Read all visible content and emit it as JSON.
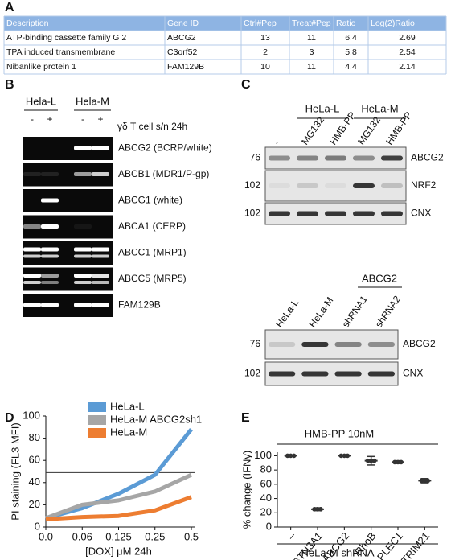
{
  "panel_labels": [
    "A",
    "B",
    "C",
    "D",
    "E"
  ],
  "table": {
    "header": [
      "Description",
      "Gene ID",
      "Ctrl#Pep",
      "Treat#Pep",
      "Ratio",
      "Log(2)Ratio"
    ],
    "rows": [
      [
        "ATP-binding cassette family G 2",
        "ABCG2",
        13,
        11,
        6.4,
        2.69
      ],
      [
        "TPA induced transmembrane",
        "C3orf52",
        2,
        3,
        5.8,
        2.54
      ],
      [
        "Nibanlike protein 1",
        "FAM129B",
        10,
        11,
        4.4,
        2.14
      ]
    ]
  },
  "gel_b": {
    "groups": [
      "Hela-L",
      "Hela-M"
    ],
    "lane_signs": [
      "-",
      "+",
      "-",
      "+"
    ],
    "treatment": "γδ T cell s/n 24h",
    "bands": [
      "ABCG2 (BCRP/white)",
      "ABCB1 (MDR1/P-gp)",
      "ABCG1 (white)",
      "ABCA1 (CERP)",
      "ABCC1 (MRP1)",
      "ABCC5 (MRP5)",
      "FAM129B"
    ]
  },
  "western_c": {
    "groups": [
      "HeLa-L",
      "HeLa-M"
    ],
    "lanes": [
      "-",
      "MG132",
      "HMB-PP",
      "MG132",
      "HMB-PP"
    ],
    "blots": [
      {
        "marker": 76,
        "label": "ABCG2"
      },
      {
        "marker": 102,
        "label": "NRF2"
      },
      {
        "marker": 102,
        "label": "CNX"
      }
    ],
    "knockdown": {
      "group": "ABCG2",
      "lanes": [
        "HeLa-L",
        "HeLa-M",
        "shRNA1",
        "shRNA2"
      ],
      "blots": [
        {
          "marker": 76,
          "label": "ABCG2"
        },
        {
          "marker": 102,
          "label": "CNX"
        }
      ]
    }
  },
  "chart_data": [
    {
      "type": "line",
      "xlabel": "[DOX] μM 24h",
      "ylabel": "PI staining (FL3 MFI)",
      "categories": [
        "0.0",
        "0.06",
        "0.125",
        "0.25",
        "0.5"
      ],
      "series": [
        {
          "name": "HeLa-L",
          "color": "#5b9bd5",
          "values": [
            8,
            17,
            30,
            47,
            88
          ]
        },
        {
          "name": "HeLa-M ABCG2sh1",
          "color": "#a6a6a6",
          "values": [
            8,
            20,
            24,
            32,
            47
          ]
        },
        {
          "name": "HeLa-M",
          "color": "#ed7d31",
          "values": [
            7,
            9,
            10,
            15,
            27
          ]
        }
      ],
      "hline": 49,
      "ylim": [
        0,
        100
      ],
      "yticks": [
        0,
        20,
        40,
        60,
        80,
        100
      ],
      "legend": "upper left"
    },
    {
      "type": "dot",
      "title": "HMB-PP 10nM",
      "xlabel": "HeLa-M shRNA",
      "ylabel": "% change (IFNγ)",
      "categories": [
        "–",
        "BTN3A1",
        "ABCG2",
        "RhoB",
        "PLEC1",
        "TRIM21"
      ],
      "values": [
        100,
        25,
        100,
        93,
        91,
        65
      ],
      "errors": [
        1,
        2,
        1,
        6,
        2,
        3
      ],
      "color": "#333333",
      "ylim": [
        0,
        105
      ],
      "yticks": [
        0,
        20,
        40,
        60,
        80,
        100
      ]
    }
  ]
}
